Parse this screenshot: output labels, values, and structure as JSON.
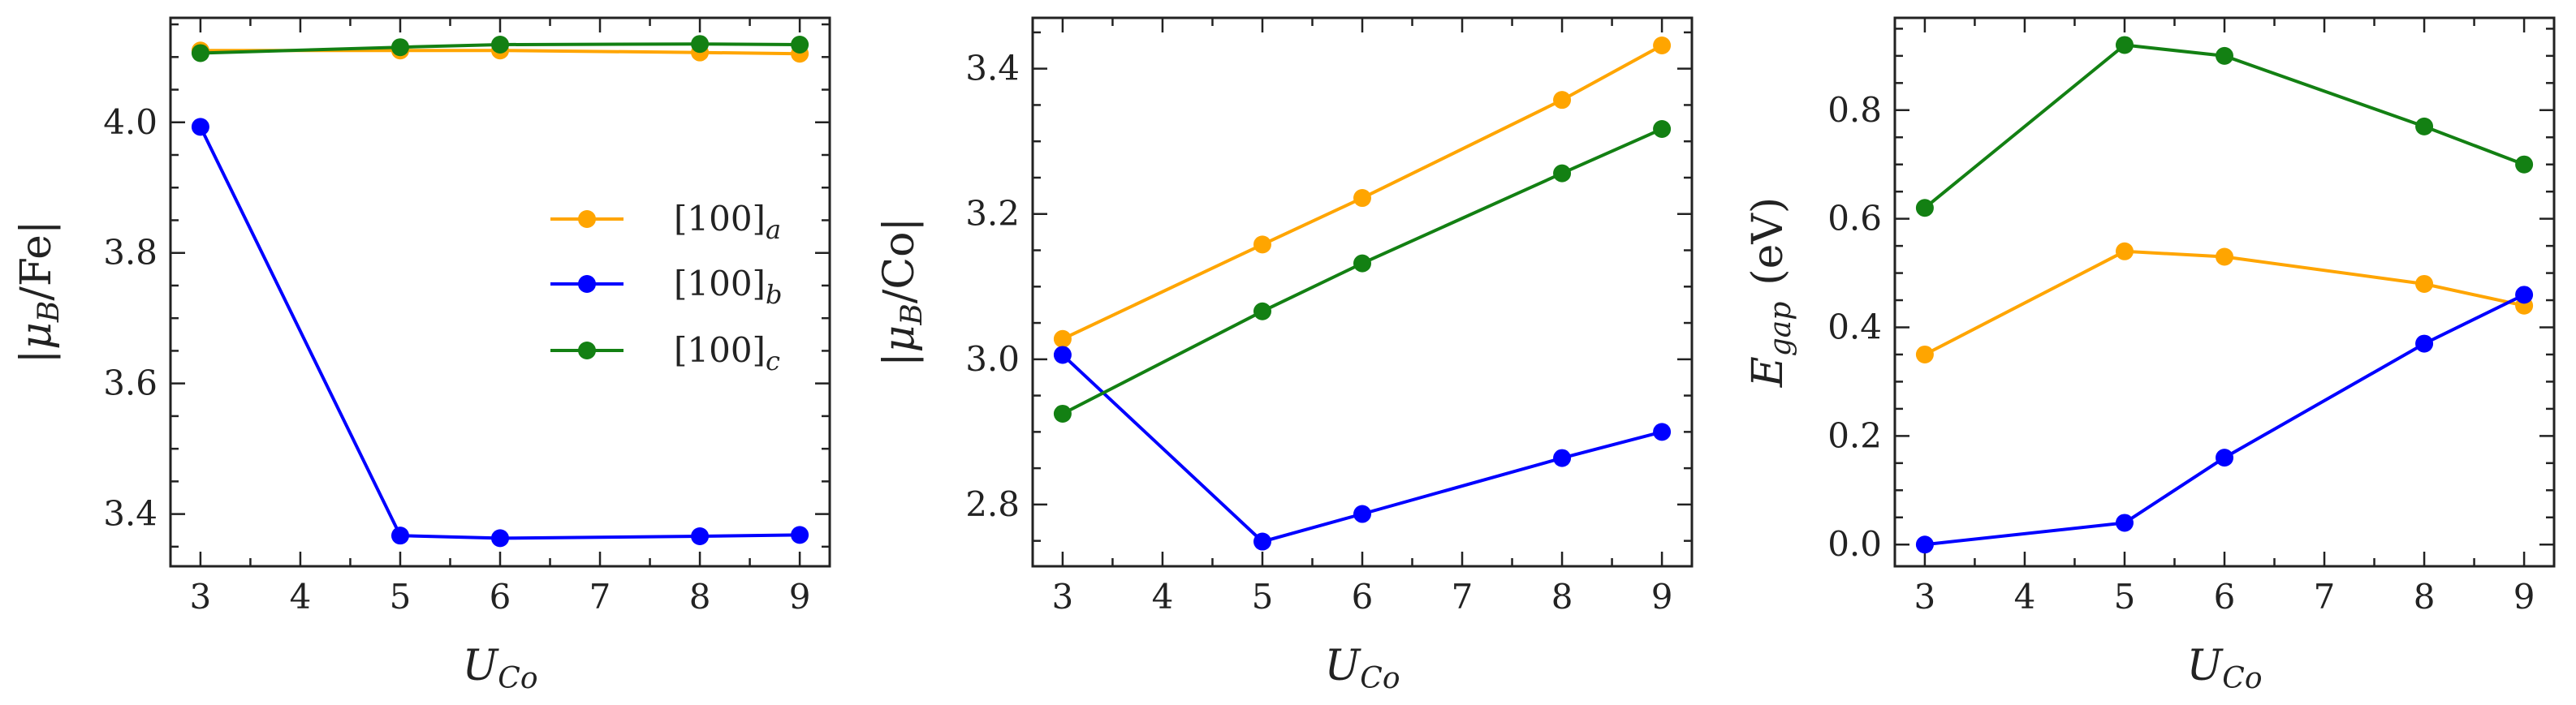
{
  "chart_data": [
    {
      "type": "line",
      "title": "",
      "xlabel": "U_Co",
      "ylabel": "|μ_B/Fe|",
      "xlim": [
        2.7,
        9.3
      ],
      "ylim": [
        3.32,
        4.16
      ],
      "xticks": [
        3,
        4,
        5,
        6,
        7,
        8,
        9
      ],
      "yticks": [
        3.4,
        3.6,
        3.8,
        4.0
      ],
      "ytick_labels": [
        "3.4",
        "3.6",
        "3.8",
        "4.0"
      ],
      "legend": "center-right",
      "x": [
        3,
        5,
        6,
        8,
        9
      ],
      "series": [
        {
          "name": "[100]_a",
          "values": [
            4.11,
            4.11,
            4.11,
            4.107,
            4.105
          ]
        },
        {
          "name": "[100]_b",
          "values": [
            3.993,
            3.367,
            3.363,
            3.366,
            3.368
          ]
        },
        {
          "name": "[100]_c",
          "values": [
            4.106,
            4.115,
            4.119,
            4.12,
            4.119
          ]
        }
      ]
    },
    {
      "type": "line",
      "title": "",
      "xlabel": "U_Co",
      "ylabel": "|μ_B/Co|",
      "xlim": [
        2.7,
        9.3
      ],
      "ylim": [
        2.715,
        3.47
      ],
      "xticks": [
        3,
        4,
        5,
        6,
        7,
        8,
        9
      ],
      "yticks": [
        2.8,
        3.0,
        3.2,
        3.4
      ],
      "ytick_labels": [
        "2.8",
        "3.0",
        "3.2",
        "3.4"
      ],
      "x": [
        3,
        5,
        6,
        8,
        9
      ],
      "series": [
        {
          "name": "[100]_a",
          "values": [
            3.028,
            3.158,
            3.222,
            3.357,
            3.432
          ]
        },
        {
          "name": "[100]_b",
          "values": [
            3.006,
            2.749,
            2.787,
            2.864,
            2.9
          ]
        },
        {
          "name": "[100]_c",
          "values": [
            2.925,
            3.066,
            3.132,
            3.256,
            3.317
          ]
        }
      ]
    },
    {
      "type": "line",
      "title": "",
      "xlabel": "U_Co",
      "ylabel": "E_gap (eV)",
      "xlim": [
        2.7,
        9.3
      ],
      "ylim": [
        -0.04,
        0.97
      ],
      "xticks": [
        3,
        4,
        5,
        6,
        7,
        8,
        9
      ],
      "yticks": [
        0.0,
        0.2,
        0.4,
        0.6,
        0.8
      ],
      "ytick_labels": [
        "0.0",
        "0.2",
        "0.4",
        "0.6",
        "0.8"
      ],
      "x": [
        3,
        5,
        6,
        8,
        9
      ],
      "series": [
        {
          "name": "[100]_a",
          "values": [
            0.35,
            0.54,
            0.53,
            0.48,
            0.44
          ]
        },
        {
          "name": "[100]_b",
          "values": [
            0.0,
            0.04,
            0.16,
            0.37,
            0.46
          ]
        },
        {
          "name": "[100]_c",
          "values": [
            0.62,
            0.92,
            0.9,
            0.77,
            0.7
          ]
        }
      ]
    }
  ],
  "colors": {
    "[100]_a": "#ffa500",
    "[100]_b": "#0000ff",
    "[100]_c": "#138013"
  },
  "axis_labels": {
    "xlabel_main": "U",
    "xlabel_sub": "Co",
    "ylabel_panel1_main": "|μ",
    "ylabel_panel1_sub": "B",
    "ylabel_panel1_rest": "/Fe|",
    "ylabel_panel2_main": "|μ",
    "ylabel_panel2_sub": "B",
    "ylabel_panel2_rest": "/Co|",
    "ylabel_panel3_main": "E",
    "ylabel_panel3_sub": "gap",
    "ylabel_panel3_rest": "(eV)"
  },
  "legend_entries": [
    {
      "main": "[100]",
      "sub": "a"
    },
    {
      "main": "[100]",
      "sub": "b"
    },
    {
      "main": "[100]",
      "sub": "c"
    }
  ]
}
